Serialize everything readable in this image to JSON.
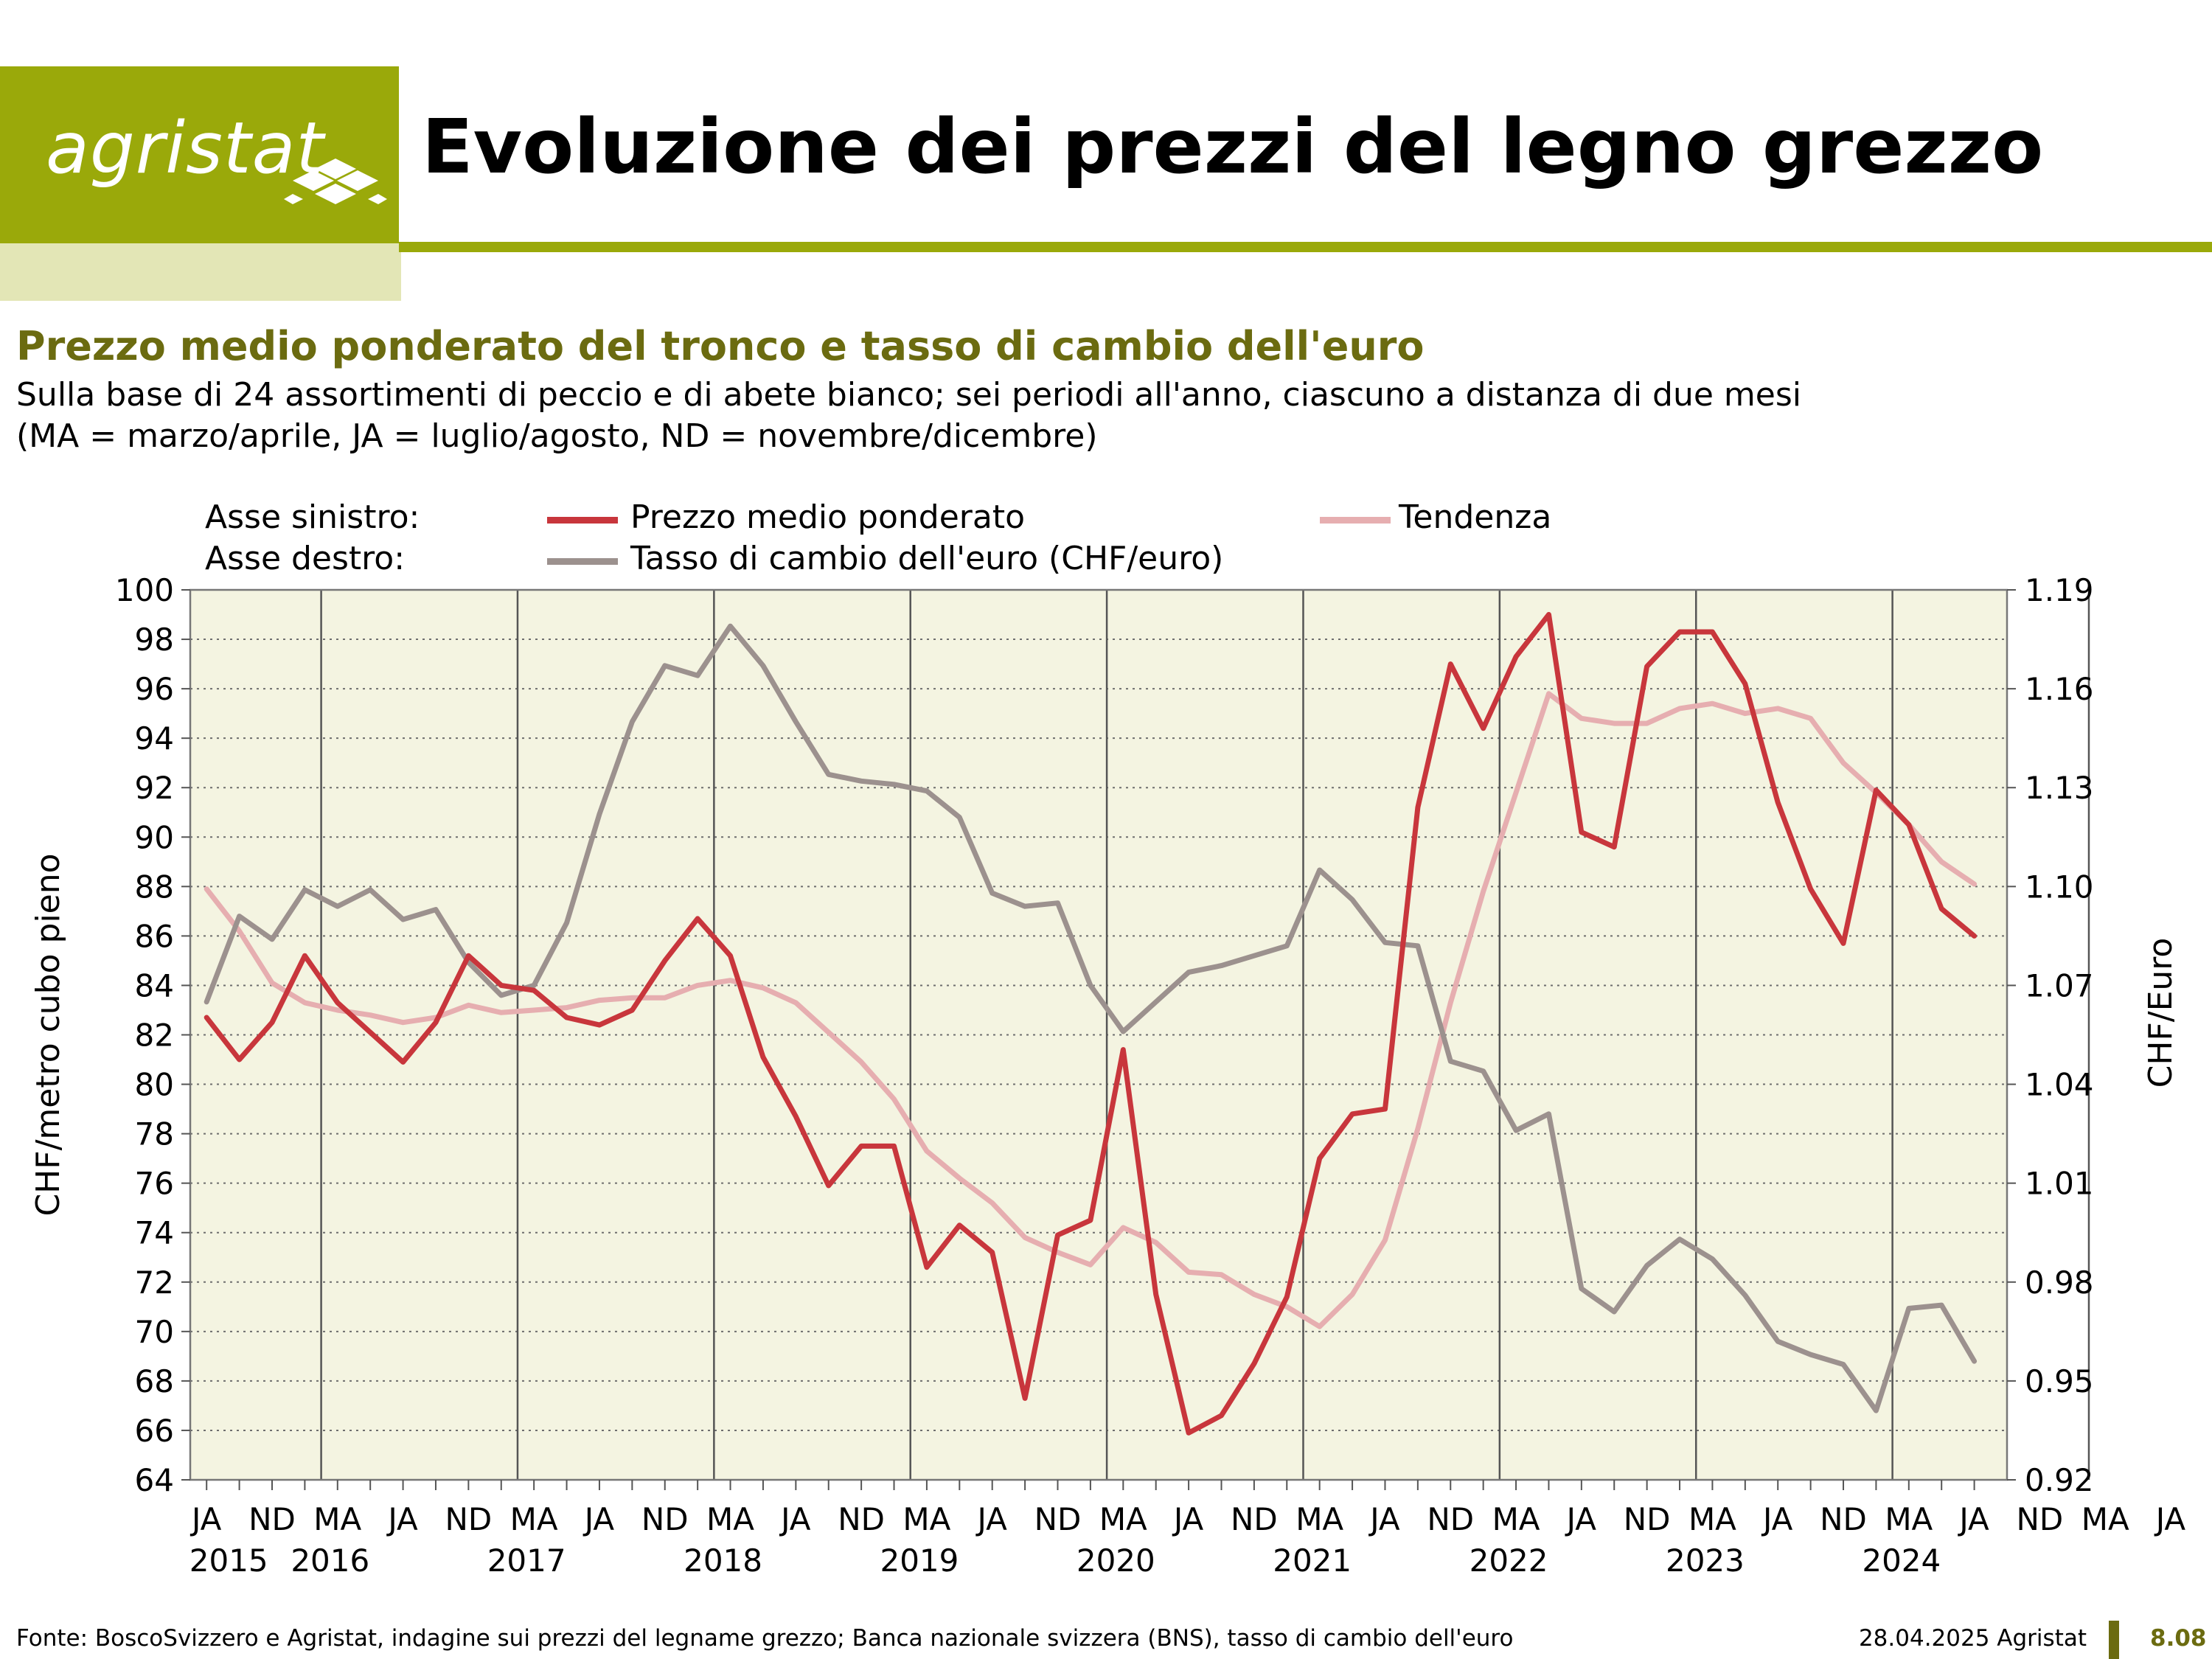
{
  "header": {
    "logo_text": "agristat",
    "title": "Evoluzione dei prezzi del legno grezzo"
  },
  "subtitle": "Prezzo medio ponderato del tronco e tasso di cambio dell'euro",
  "description": {
    "line1": "Sulla base di 24 assortimenti di peccio e di abete bianco; sei periodi all'anno, ciascuno a distanza di due mesi",
    "line2": "(MA = marzo/aprile, JA = luglio/agosto, ND = novembre/dicembre)"
  },
  "legend": {
    "left_axis_label": "Asse sinistro:",
    "right_axis_label": "Asse destro:",
    "price_name": "Prezzo medio ponderato",
    "trend_name": "Tendenza",
    "fx_name": "Tasso di cambio dell'euro (CHF/euro)"
  },
  "colors": {
    "price": "#c8363c",
    "trend": "#e6aeb0",
    "fx": "#9c918e",
    "plot_bg": "#f4f4e1",
    "brand": "#9aa90a",
    "subtitle": "#6b6b10"
  },
  "chart_data": {
    "type": "line",
    "xlabels": [
      "JA",
      "ND",
      "MA",
      "JA",
      "ND",
      "MA",
      "JA",
      "ND",
      "MA",
      "JA",
      "ND",
      "MA",
      "JA",
      "ND",
      "MA",
      "JA",
      "ND",
      "MA",
      "JA",
      "ND",
      "MA",
      "JA",
      "ND",
      "MA",
      "JA",
      "ND",
      "MA",
      "JA",
      "ND",
      "MA",
      "JA"
    ],
    "x_label_periods": [
      "JA 2015",
      "ND 2015",
      "MA 2016",
      "JA 2016",
      "ND 2016",
      "MA 2017",
      "JA 2017",
      "ND 2017",
      "MA 2018",
      "JA 2018",
      "ND 2018",
      "MA 2019",
      "JA 2019",
      "ND 2019",
      "MA 2020",
      "JA 2020",
      "ND 2020",
      "MA 2021",
      "JA 2021",
      "ND 2021",
      "MA 2022",
      "JA 2022",
      "ND 2022",
      "MA 2023",
      "JA 2023",
      "ND 2023",
      "MA 2024",
      "JA 2024",
      "ND 2024",
      "MA 2025",
      "JA 2025"
    ],
    "years": [
      "2015",
      "2016",
      "2017",
      "2018",
      "2019",
      "2020",
      "2021",
      "2022",
      "2023",
      "2024"
    ],
    "ylabel_left": "CHF/metro cubo pieno",
    "ylabel_right": "CHF/Euro",
    "ylim_left": [
      64,
      100
    ],
    "yticks_left": [
      64,
      66,
      68,
      70,
      72,
      74,
      76,
      78,
      80,
      82,
      84,
      86,
      88,
      90,
      92,
      94,
      96,
      98,
      100
    ],
    "ylim_right": [
      0.92,
      1.19
    ],
    "yticks_right": [
      "0.92",
      "0.95",
      "0.98",
      "1.01",
      "1.04",
      "1.07",
      "1.10",
      "1.13",
      "1.16",
      "1.19"
    ],
    "grid": true,
    "series": [
      {
        "name": "Prezzo medio ponderato",
        "axis": "left",
        "x_start_period": "JA 2015",
        "values": [
          82.7,
          81.0,
          82.5,
          85.2,
          83.3,
          82.1,
          80.9,
          82.5,
          85.2,
          84.0,
          83.8,
          82.7,
          82.4,
          83.0,
          85.0,
          86.7,
          85.2,
          81.1,
          78.7,
          75.9,
          77.5,
          77.5,
          72.6,
          74.3,
          73.2,
          67.3,
          73.9,
          74.5,
          81.4,
          71.5,
          65.9,
          66.6,
          68.7,
          71.4,
          77.0,
          78.8,
          79.0,
          91.2,
          97.0,
          94.4,
          97.3,
          99.0,
          90.2,
          89.6,
          96.9,
          98.3,
          98.3,
          96.2,
          91.4,
          87.9,
          85.7,
          91.9,
          90.5,
          87.1,
          86.0
        ]
      },
      {
        "name": "Tendenza",
        "axis": "left",
        "x_start_period": "JA 2015",
        "values": [
          87.9,
          86.2,
          84.1,
          83.3,
          83.0,
          82.8,
          82.5,
          82.7,
          83.2,
          82.9,
          83.0,
          83.1,
          83.4,
          83.5,
          83.5,
          84.0,
          84.2,
          83.9,
          83.3,
          82.1,
          80.9,
          79.4,
          77.3,
          76.2,
          75.2,
          73.8,
          73.2,
          72.7,
          74.2,
          73.6,
          72.4,
          72.3,
          71.5,
          71.0,
          70.2,
          71.5,
          73.7,
          78.2,
          83.3,
          87.8,
          91.8,
          95.8,
          94.8,
          94.6,
          94.6,
          95.2,
          95.4,
          95.0,
          95.2,
          94.8,
          93.0,
          91.8,
          90.5,
          89.0,
          88.1
        ]
      },
      {
        "name": "Tasso di cambio dell'euro (CHF/euro)",
        "axis": "right",
        "x_start_period": "JA 2015",
        "values": [
          1.065,
          1.091,
          1.084,
          1.099,
          1.094,
          1.099,
          1.09,
          1.093,
          1.077,
          1.067,
          1.07,
          1.089,
          1.122,
          1.15,
          1.167,
          1.164,
          1.179,
          1.167,
          1.15,
          1.134,
          1.132,
          1.131,
          1.129,
          1.121,
          1.098,
          1.094,
          1.095,
          1.07,
          1.056,
          1.065,
          1.074,
          1.076,
          1.079,
          1.082,
          1.105,
          1.096,
          1.083,
          1.082,
          1.047,
          1.044,
          1.026,
          1.031,
          0.978,
          0.971,
          0.985,
          0.993,
          0.987,
          0.976,
          0.962,
          0.958,
          0.955,
          0.941,
          0.972,
          0.973,
          0.956
        ]
      }
    ]
  }
}
